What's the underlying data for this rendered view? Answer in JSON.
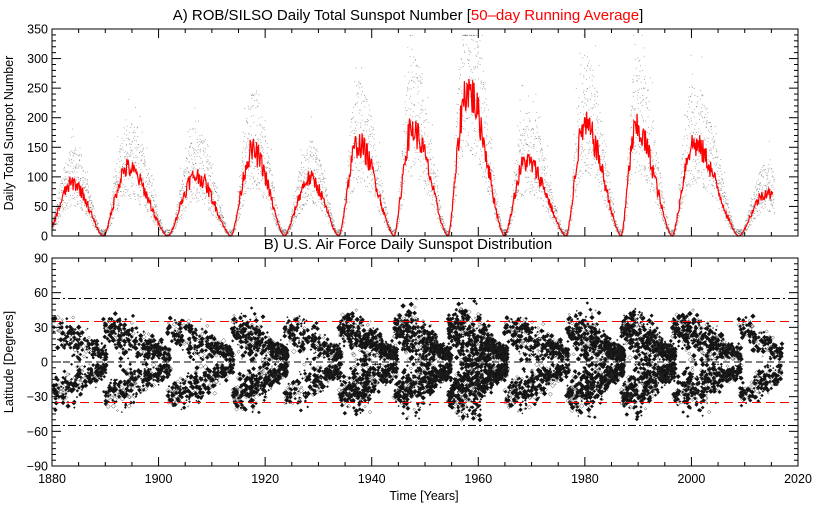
{
  "chart_data": [
    {
      "type": "line",
      "title_main": "A) ROB/SILSO Daily Total Sunspot Number [",
      "title_highlight": "50–day Running Average",
      "title_end": "]",
      "ylabel": "Daily Total Sunspot Number",
      "xlim": [
        1880,
        2020
      ],
      "ylim": [
        0,
        350
      ],
      "yticks": [
        "350",
        "300",
        "250",
        "200",
        "150",
        "100",
        "50",
        "0"
      ],
      "colors": {
        "daily": "#555555",
        "average": "#ff0000"
      },
      "series": [
        {
          "name": "Daily Total Sunspot Number",
          "style": "scatter"
        },
        {
          "name": "50-day Running Average",
          "style": "line",
          "cycle_minima": [
            1879,
            1889.6,
            1901.7,
            1913.6,
            1923.6,
            1933.8,
            1944.2,
            1954.3,
            1964.9,
            1976.5,
            1986.8,
            1996.4,
            2008.9
          ],
          "cycle_maxima": [
            {
              "year": 1883.9,
              "value": 92
            },
            {
              "year": 1894.1,
              "value": 118
            },
            {
              "year": 1907.0,
              "value": 105
            },
            {
              "year": 1917.6,
              "value": 148
            },
            {
              "year": 1928.4,
              "value": 100
            },
            {
              "year": 1937.4,
              "value": 160
            },
            {
              "year": 1947.5,
              "value": 185
            },
            {
              "year": 1957.9,
              "value": 255
            },
            {
              "year": 1968.9,
              "value": 130
            },
            {
              "year": 1979.9,
              "value": 190
            },
            {
              "year": 1989.6,
              "value": 185
            },
            {
              "year": 2000.3,
              "value": 160
            },
            {
              "year": 2014.0,
              "value": 75
            }
          ]
        }
      ]
    },
    {
      "type": "scatter",
      "title": "B) U.S. Air Force Daily Sunspot Distribution",
      "xlabel": "Time [Years]",
      "ylabel": "Latitude [Degrees]",
      "xlim": [
        1880,
        2020
      ],
      "ylim": [
        -90,
        90
      ],
      "xticks": [
        "1880",
        "1900",
        "1920",
        "1940",
        "1960",
        "1980",
        "2000",
        "2020"
      ],
      "yticks": [
        "90",
        "60",
        "30",
        "0",
        "−30",
        "−60",
        "−90"
      ],
      "reference_lines": [
        {
          "latitude": 55,
          "style": "dash-dot",
          "color": "#000000"
        },
        {
          "latitude": -55,
          "style": "dash-dot",
          "color": "#000000"
        },
        {
          "latitude": 35,
          "style": "dashed",
          "color": "#ff0000"
        },
        {
          "latitude": -35,
          "style": "dashed",
          "color": "#ff0000"
        },
        {
          "latitude": 0,
          "style": "dashed",
          "color": "#000000"
        }
      ],
      "butterfly_wings": [
        1879.5,
        1889.6,
        1901.7,
        1913.6,
        1923.6,
        1933.8,
        1944.2,
        1954.3,
        1964.9,
        1976.5,
        1986.8,
        1996.4,
        2008.9
      ]
    }
  ]
}
